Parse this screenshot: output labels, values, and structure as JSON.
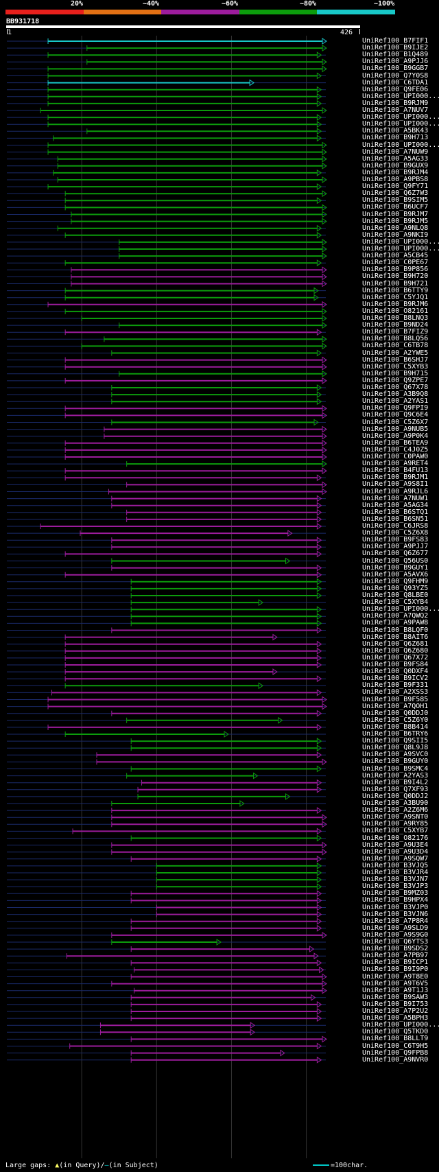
{
  "query": {
    "name": "BB931718",
    "start": "1",
    "end": "426",
    "length": 426
  },
  "color_scale": [
    {
      "label": "20%",
      "color": "#e8201c"
    },
    {
      "label": "~40%",
      "color": "#e27014"
    },
    {
      "label": "~60%",
      "color": "#9c1c9c"
    },
    {
      "label": "~80%",
      "color": "#0c9c0c"
    },
    {
      "label": "~100%",
      "color": "#18c8c8"
    }
  ],
  "legend": {
    "prefix": "Large gaps: ",
    "query_gap": "(in Query)/",
    "subject_gap": "(in Subject)",
    "scale": "=100char."
  },
  "hits": [
    {
      "name": "UniRef100_B7FIF1",
      "s": 55,
      "e": 426,
      "c": "c"
    },
    {
      "name": "UniRef100_B9IJE2",
      "s": 107,
      "e": 426,
      "c": "g"
    },
    {
      "name": "UniRef100_B1Q489",
      "s": 55,
      "e": 419,
      "c": "g"
    },
    {
      "name": "UniRef100_A9PJJ6",
      "s": 107,
      "e": 426,
      "c": "g"
    },
    {
      "name": "UniRef100_B9GGB7",
      "s": 55,
      "e": 426,
      "c": "g"
    },
    {
      "name": "UniRef100_Q7Y0S8",
      "s": 55,
      "e": 419,
      "c": "g"
    },
    {
      "name": "UniRef100_C6TDA1",
      "s": 55,
      "e": 329,
      "c": "c"
    },
    {
      "name": "UniRef100_Q9FE06",
      "s": 55,
      "e": 419,
      "c": "g"
    },
    {
      "name": "UniRef100_UPI000...",
      "s": 55,
      "e": 419,
      "c": "g"
    },
    {
      "name": "UniRef100_B9RJM9",
      "s": 55,
      "e": 419,
      "c": "g"
    },
    {
      "name": "UniRef100_A7NUV7",
      "s": 45,
      "e": 426,
      "c": "g"
    },
    {
      "name": "UniRef100_UPI000...",
      "s": 55,
      "e": 419,
      "c": "g"
    },
    {
      "name": "UniRef100_UPI000...",
      "s": 55,
      "e": 419,
      "c": "g"
    },
    {
      "name": "UniRef100_A5BK43",
      "s": 107,
      "e": 419,
      "c": "g"
    },
    {
      "name": "UniRef100_B9H713",
      "s": 62,
      "e": 419,
      "c": "g"
    },
    {
      "name": "UniRef100_UPI000...",
      "s": 55,
      "e": 426,
      "c": "g"
    },
    {
      "name": "UniRef100_A7NUW9",
      "s": 55,
      "e": 426,
      "c": "g"
    },
    {
      "name": "UniRef100_A5AG33",
      "s": 68,
      "e": 426,
      "c": "g"
    },
    {
      "name": "UniRef100_B9GUX9",
      "s": 68,
      "e": 426,
      "c": "g"
    },
    {
      "name": "UniRef100_B9RJM4",
      "s": 62,
      "e": 419,
      "c": "g"
    },
    {
      "name": "UniRef100_A9PBS8",
      "s": 68,
      "e": 426,
      "c": "g"
    },
    {
      "name": "UniRef100_Q9FY71",
      "s": 55,
      "e": 419,
      "c": "g"
    },
    {
      "name": "UniRef100_Q6Z7W3",
      "s": 78,
      "e": 426,
      "c": "g"
    },
    {
      "name": "UniRef100_B9SIM5",
      "s": 78,
      "e": 419,
      "c": "g"
    },
    {
      "name": "UniRef100_B6UCF7",
      "s": 78,
      "e": 426,
      "c": "g"
    },
    {
      "name": "UniRef100_B9RJM7",
      "s": 86,
      "e": 426,
      "c": "g"
    },
    {
      "name": "UniRef100_B9RJM5",
      "s": 86,
      "e": 426,
      "c": "g"
    },
    {
      "name": "UniRef100_A9NLQ8",
      "s": 68,
      "e": 419,
      "c": "g"
    },
    {
      "name": "UniRef100_A9NKI9",
      "s": 78,
      "e": 419,
      "c": "g"
    },
    {
      "name": "UniRef100_UPI000...",
      "s": 150,
      "e": 426,
      "c": "g"
    },
    {
      "name": "UniRef100_UPI000...",
      "s": 150,
      "e": 426,
      "c": "g"
    },
    {
      "name": "UniRef100_A5CB45",
      "s": 150,
      "e": 426,
      "c": "g"
    },
    {
      "name": "UniRef100_C0PE67",
      "s": 78,
      "e": 419,
      "c": "g"
    },
    {
      "name": "UniRef100_B9P856",
      "s": 86,
      "e": 426,
      "c": "m"
    },
    {
      "name": "UniRef100_B9H720",
      "s": 86,
      "e": 426,
      "c": "m"
    },
    {
      "name": "UniRef100_B9H721",
      "s": 86,
      "e": 426,
      "c": "m"
    },
    {
      "name": "UniRef100_B6TTY9",
      "s": 78,
      "e": 415,
      "c": "g"
    },
    {
      "name": "UniRef100_C5YJQ1",
      "s": 78,
      "e": 415,
      "c": "g"
    },
    {
      "name": "UniRef100_B9RJM6",
      "s": 55,
      "e": 426,
      "c": "m"
    },
    {
      "name": "UniRef100_O82161",
      "s": 78,
      "e": 426,
      "c": "g"
    },
    {
      "name": "UniRef100_B8LNQ3",
      "s": 100,
      "e": 426,
      "c": "g"
    },
    {
      "name": "UniRef100_B9ND24",
      "s": 150,
      "e": 426,
      "c": "g"
    },
    {
      "name": "UniRef100_B7FIZ9",
      "s": 78,
      "e": 419,
      "c": "m"
    },
    {
      "name": "UniRef100_B8LQ56",
      "s": 130,
      "e": 426,
      "c": "g"
    },
    {
      "name": "UniRef100_C6TB78",
      "s": 100,
      "e": 426,
      "c": "g"
    },
    {
      "name": "UniRef100_A2YWE5",
      "s": 140,
      "e": 419,
      "c": "g"
    },
    {
      "name": "UniRef100_B6SHJ7",
      "s": 78,
      "e": 426,
      "c": "m"
    },
    {
      "name": "UniRef100_C5XYB3",
      "s": 78,
      "e": 426,
      "c": "m"
    },
    {
      "name": "UniRef100_B9H715",
      "s": 150,
      "e": 426,
      "c": "g"
    },
    {
      "name": "UniRef100_Q9ZPE7",
      "s": 78,
      "e": 426,
      "c": "m"
    },
    {
      "name": "UniRef100_Q67X78",
      "s": 140,
      "e": 419,
      "c": "g"
    },
    {
      "name": "UniRef100_A3B9Q8",
      "s": 140,
      "e": 419,
      "c": "g"
    },
    {
      "name": "UniRef100_A2YAS1",
      "s": 140,
      "e": 419,
      "c": "g"
    },
    {
      "name": "UniRef100_Q9FPI9",
      "s": 78,
      "e": 426,
      "c": "m"
    },
    {
      "name": "UniRef100_Q9C6E4",
      "s": 78,
      "e": 426,
      "c": "m"
    },
    {
      "name": "UniRef100_C5Z6X7",
      "s": 140,
      "e": 415,
      "c": "g"
    },
    {
      "name": "UniRef100_A9NUB5",
      "s": 130,
      "e": 426,
      "c": "m"
    },
    {
      "name": "UniRef100_A9P0K4",
      "s": 130,
      "e": 426,
      "c": "m"
    },
    {
      "name": "UniRef100_B6TEA9",
      "s": 78,
      "e": 426,
      "c": "m"
    },
    {
      "name": "UniRef100_C4J0Z5",
      "s": 78,
      "e": 426,
      "c": "m"
    },
    {
      "name": "UniRef100_C0PAW0",
      "s": 78,
      "e": 426,
      "c": "m"
    },
    {
      "name": "UniRef100_A9RET4",
      "s": 160,
      "e": 426,
      "c": "g"
    },
    {
      "name": "UniRef100_B4FU13",
      "s": 78,
      "e": 426,
      "c": "m"
    },
    {
      "name": "UniRef100_B9RJM1",
      "s": 78,
      "e": 419,
      "c": "m"
    },
    {
      "name": "UniRef100_A9S8I1",
      "s": 160,
      "e": 426,
      "c": "m"
    },
    {
      "name": "UniRef100_A9RJL6",
      "s": 136,
      "e": 426,
      "c": "m"
    },
    {
      "name": "UniRef100_A7NUW1",
      "s": 140,
      "e": 419,
      "c": "m"
    },
    {
      "name": "UniRef100_A5AG34",
      "s": 140,
      "e": 419,
      "c": "m"
    },
    {
      "name": "UniRef100_B6STQ1",
      "s": 160,
      "e": 419,
      "c": "m"
    },
    {
      "name": "UniRef100_B6SN51",
      "s": 160,
      "e": 419,
      "c": "m"
    },
    {
      "name": "UniRef100_C6JRS8",
      "s": 45,
      "e": 419,
      "c": "m"
    },
    {
      "name": "UniRef100_C5Z6X8",
      "s": 98,
      "e": 380,
      "c": "m"
    },
    {
      "name": "UniRef100_B9FS83",
      "s": 140,
      "e": 419,
      "c": "m"
    },
    {
      "name": "UniRef100_A9PJJ7",
      "s": 140,
      "e": 419,
      "c": "m"
    },
    {
      "name": "UniRef100_Q6Z677",
      "s": 78,
      "e": 419,
      "c": "m"
    },
    {
      "name": "UniRef100_Q56US0",
      "s": 140,
      "e": 377,
      "c": "g"
    },
    {
      "name": "UniRef100_B9GUY1",
      "s": 140,
      "e": 419,
      "c": "m"
    },
    {
      "name": "UniRef100_A5AVX6",
      "s": 78,
      "e": 419,
      "c": "m"
    },
    {
      "name": "UniRef100_Q9FHM9",
      "s": 166,
      "e": 419,
      "c": "g"
    },
    {
      "name": "UniRef100_Q93YZ5",
      "s": 166,
      "e": 419,
      "c": "g"
    },
    {
      "name": "UniRef100_Q8LBE0",
      "s": 166,
      "e": 419,
      "c": "g"
    },
    {
      "name": "UniRef100_C5XYB4",
      "s": 166,
      "e": 341,
      "c": "g"
    },
    {
      "name": "UniRef100_UPI000...",
      "s": 166,
      "e": 419,
      "c": "g"
    },
    {
      "name": "UniRef100_A7QWQ2",
      "s": 166,
      "e": 419,
      "c": "g"
    },
    {
      "name": "UniRef100_A9PAW8",
      "s": 166,
      "e": 419,
      "c": "g"
    },
    {
      "name": "UniRef100_B8LQF0",
      "s": 140,
      "e": 419,
      "c": "m"
    },
    {
      "name": "UniRef100_B8AIT6",
      "s": 78,
      "e": 360,
      "c": "m"
    },
    {
      "name": "UniRef100_Q6Z681",
      "s": 78,
      "e": 419,
      "c": "m"
    },
    {
      "name": "UniRef100_Q6Z680",
      "s": 78,
      "e": 419,
      "c": "m"
    },
    {
      "name": "UniRef100_Q67X72",
      "s": 78,
      "e": 419,
      "c": "m"
    },
    {
      "name": "UniRef100_B9FS84",
      "s": 78,
      "e": 419,
      "c": "m"
    },
    {
      "name": "UniRef100_Q0DXF4",
      "s": 78,
      "e": 360,
      "c": "m"
    },
    {
      "name": "UniRef100_B9ICV2",
      "s": 78,
      "e": 419,
      "c": "m"
    },
    {
      "name": "UniRef100_B9F331",
      "s": 78,
      "e": 341,
      "c": "g"
    },
    {
      "name": "UniRef100_A2XSS3",
      "s": 60,
      "e": 419,
      "c": "m"
    },
    {
      "name": "UniRef100_B9F585",
      "s": 55,
      "e": 426,
      "c": "m"
    },
    {
      "name": "UniRef100_A7QOH1",
      "s": 55,
      "e": 426,
      "c": "m"
    },
    {
      "name": "UniRef100_Q0DDJ0",
      "s": 140,
      "e": 419,
      "c": "m"
    },
    {
      "name": "UniRef100_C5Z6Y0",
      "s": 160,
      "e": 367,
      "c": "g"
    },
    {
      "name": "UniRef100_B8B414",
      "s": 55,
      "e": 419,
      "c": "m"
    },
    {
      "name": "UniRef100_B6TRY6",
      "s": 78,
      "e": 295,
      "c": "g"
    },
    {
      "name": "UniRef100_Q9SII5",
      "s": 166,
      "e": 419,
      "c": "g"
    },
    {
      "name": "UniRef100_Q8L9J8",
      "s": 166,
      "e": 419,
      "c": "g"
    },
    {
      "name": "UniRef100_A9SVC0",
      "s": 120,
      "e": 419,
      "c": "m"
    },
    {
      "name": "UniRef100_B9GUY0",
      "s": 120,
      "e": 426,
      "c": "m"
    },
    {
      "name": "UniRef100_B9SMC4",
      "s": 166,
      "e": 419,
      "c": "g"
    },
    {
      "name": "UniRef100_A2YAS3",
      "s": 160,
      "e": 334,
      "c": "g"
    },
    {
      "name": "UniRef100_B9I4L2",
      "s": 180,
      "e": 419,
      "c": "m"
    },
    {
      "name": "UniRef100_Q7XF93",
      "s": 175,
      "e": 419,
      "c": "m"
    },
    {
      "name": "UniRef100_Q0DDJ2",
      "s": 175,
      "e": 377,
      "c": "g"
    },
    {
      "name": "UniRef100_A3BU90",
      "s": 140,
      "e": 316,
      "c": "g"
    },
    {
      "name": "UniRef100_A2Z6M6",
      "s": 140,
      "e": 419,
      "c": "m"
    },
    {
      "name": "UniRef100_A9SNT0",
      "s": 140,
      "e": 426,
      "c": "m"
    },
    {
      "name": "UniRef100_A9RY85",
      "s": 140,
      "e": 426,
      "c": "m"
    },
    {
      "name": "UniRef100_C5XYB7",
      "s": 88,
      "e": 419,
      "c": "m"
    },
    {
      "name": "UniRef100_O82176",
      "s": 166,
      "e": 419,
      "c": "g"
    },
    {
      "name": "UniRef100_A9U3E4",
      "s": 140,
      "e": 426,
      "c": "m"
    },
    {
      "name": "UniRef100_A9U3D4",
      "s": 140,
      "e": 426,
      "c": "m"
    },
    {
      "name": "UniRef100_A9SQW7",
      "s": 166,
      "e": 419,
      "c": "m"
    },
    {
      "name": "UniRef100_B3VJQ5",
      "s": 200,
      "e": 419,
      "c": "g"
    },
    {
      "name": "UniRef100_B3VJR4",
      "s": 200,
      "e": 419,
      "c": "g"
    },
    {
      "name": "UniRef100_B3VJN7",
      "s": 200,
      "e": 419,
      "c": "g"
    },
    {
      "name": "UniRef100_B3VJP3",
      "s": 200,
      "e": 419,
      "c": "g"
    },
    {
      "name": "UniRef100_B9MZ03",
      "s": 166,
      "e": 419,
      "c": "m"
    },
    {
      "name": "UniRef100_B9HPX4",
      "s": 166,
      "e": 419,
      "c": "m"
    },
    {
      "name": "UniRef100_B3VJP0",
      "s": 200,
      "e": 419,
      "c": "m"
    },
    {
      "name": "UniRef100_B3VJN6",
      "s": 200,
      "e": 419,
      "c": "m"
    },
    {
      "name": "UniRef100_A7P8R4",
      "s": 166,
      "e": 419,
      "c": "m"
    },
    {
      "name": "UniRef100_A9SLD9",
      "s": 166,
      "e": 419,
      "c": "m"
    },
    {
      "name": "UniRef100_A9S9G0",
      "s": 140,
      "e": 426,
      "c": "m"
    },
    {
      "name": "UniRef100_Q6YTS3",
      "s": 140,
      "e": 285,
      "c": "g"
    },
    {
      "name": "UniRef100_B9SDS2",
      "s": 166,
      "e": 409,
      "c": "m"
    },
    {
      "name": "UniRef100_A7PB97",
      "s": 80,
      "e": 415,
      "c": "m"
    },
    {
      "name": "UniRef100_B9ICP1",
      "s": 166,
      "e": 419,
      "c": "m"
    },
    {
      "name": "UniRef100_B9I9P0",
      "s": 170,
      "e": 422,
      "c": "m"
    },
    {
      "name": "UniRef100_A9T8E0",
      "s": 166,
      "e": 426,
      "c": "m"
    },
    {
      "name": "UniRef100_A9T6V5",
      "s": 140,
      "e": 426,
      "c": "m"
    },
    {
      "name": "UniRef100_A9T1J3",
      "s": 170,
      "e": 426,
      "c": "m"
    },
    {
      "name": "UniRef100_B9SAW3",
      "s": 166,
      "e": 411,
      "c": "m"
    },
    {
      "name": "UniRef100_B9I753",
      "s": 166,
      "e": 419,
      "c": "m"
    },
    {
      "name": "UniRef100_A7P2U2",
      "s": 166,
      "e": 419,
      "c": "m"
    },
    {
      "name": "UniRef100_A5BPH3",
      "s": 166,
      "e": 419,
      "c": "m"
    },
    {
      "name": "UniRef100_UPI000...",
      "s": 125,
      "e": 330,
      "c": "m"
    },
    {
      "name": "UniRef100_Q5TKD0",
      "s": 125,
      "e": 330,
      "c": "m"
    },
    {
      "name": "UniRef100_B8LLT9",
      "s": 166,
      "e": 426,
      "c": "m"
    },
    {
      "name": "UniRef100_C6T9H5",
      "s": 84,
      "e": 419,
      "c": "m"
    },
    {
      "name": "UniRef100_Q9FPB8",
      "s": 166,
      "e": 370,
      "c": "m"
    },
    {
      "name": "UniRef100_A9NVR0",
      "s": 166,
      "e": 419,
      "c": "m"
    }
  ]
}
